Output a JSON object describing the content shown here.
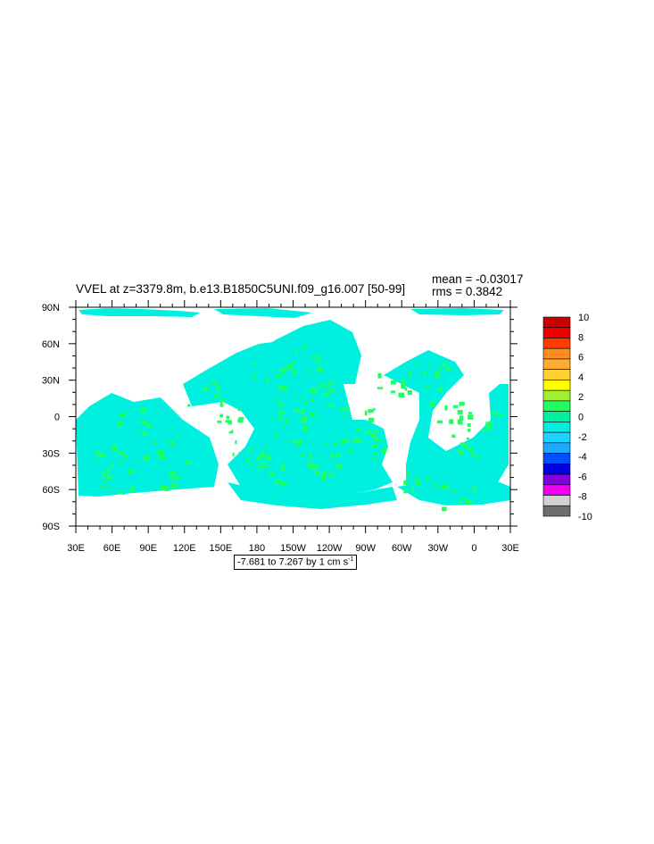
{
  "figure": {
    "title": "VVEL at z=3379.8m, b.e13.B1850C5UNI.f09_g16.007 [50-99]",
    "mean_text": "mean = -0.03017",
    "rms_text": "rms = 0.3842",
    "range_text": "-7.681 to 7.267 by 1 cm s",
    "range_unit_exponent": "-1"
  },
  "map": {
    "lon_labels": [
      "30E",
      "60E",
      "90E",
      "120E",
      "150E",
      "180",
      "150W",
      "120W",
      "90W",
      "60W",
      "30W",
      "0",
      "30E"
    ],
    "lat_labels": [
      "90N",
      "60N",
      "30N",
      "0",
      "30S",
      "60S",
      "90S"
    ],
    "land_color": "#ffffff",
    "dominant_colors": [
      "#00f0e0",
      "#20ff60"
    ]
  },
  "colorbar": {
    "labels": [
      "10",
      "8",
      "6",
      "4",
      "2",
      "0",
      "-2",
      "-4",
      "-6",
      "-8",
      "-10"
    ],
    "colors": [
      "#c80000",
      "#ee0000",
      "#ff3c00",
      "#ff8c1e",
      "#ffaa32",
      "#ffd232",
      "#ffff00",
      "#a0f032",
      "#20ff60",
      "#00f0a0",
      "#00f0e0",
      "#1ed2ff",
      "#1eaaff",
      "#0050ff",
      "#0000e0",
      "#8200dc",
      "#f000f0",
      "#d2d2d2",
      "#6e6e6e"
    ]
  }
}
